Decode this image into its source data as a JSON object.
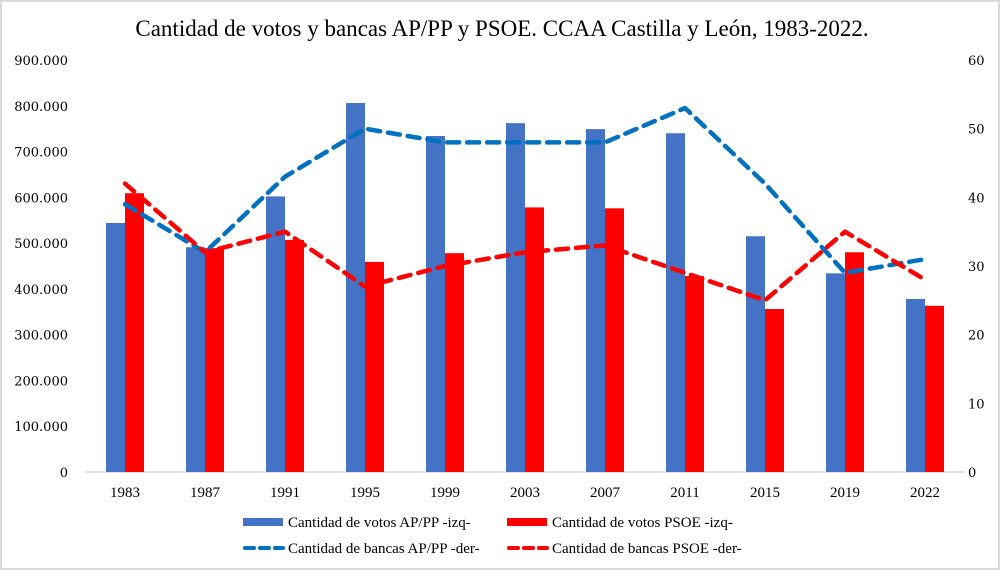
{
  "chart_data": {
    "type": "bar",
    "title": "Cantidad de votos y bancas AP/PP y PSOE. CCAA Castilla y León, 1983-2022.",
    "xlabel": "",
    "ylabel": "",
    "y2label": "",
    "categories": [
      "1983",
      "1987",
      "1991",
      "1995",
      "1999",
      "2003",
      "2007",
      "2011",
      "2015",
      "2019",
      "2022"
    ],
    "ylim": [
      0,
      900000
    ],
    "y2lim": [
      0,
      60
    ],
    "yticks": [
      "0",
      "100.000",
      "200.000",
      "300.000",
      "400.000",
      "500.000",
      "600.000",
      "700.000",
      "800.000",
      "900.000"
    ],
    "y2ticks": [
      "0",
      "10",
      "20",
      "30",
      "40",
      "50",
      "60"
    ],
    "grid": false,
    "legend_position": "bottom",
    "series": [
      {
        "name": "Cantidad de votos AP/PP -izq-",
        "type": "bar",
        "axis": "left",
        "color": "#4472C4",
        "values": [
          544000,
          491000,
          602000,
          806000,
          734000,
          762000,
          749000,
          740000,
          515000,
          434000,
          378000
        ]
      },
      {
        "name": "Cantidad de votos PSOE -izq-",
        "type": "bar",
        "axis": "left",
        "color": "#FF0000",
        "values": [
          609000,
          489000,
          507000,
          459000,
          478000,
          578000,
          576000,
          428000,
          356000,
          480000,
          363000
        ]
      },
      {
        "name": "Cantidad de bancas AP/PP -der-",
        "type": "line",
        "style": "dashed",
        "axis": "right",
        "color": "#0070C0",
        "values": [
          39,
          32,
          43,
          50,
          48,
          48,
          48,
          53,
          42,
          29,
          31
        ]
      },
      {
        "name": "Cantidad de bancas PSOE -der-",
        "type": "line",
        "style": "dashed",
        "axis": "right",
        "color": "#FF0000",
        "values": [
          42,
          32,
          35,
          27,
          30,
          32,
          33,
          29,
          25,
          35,
          28
        ]
      }
    ]
  }
}
